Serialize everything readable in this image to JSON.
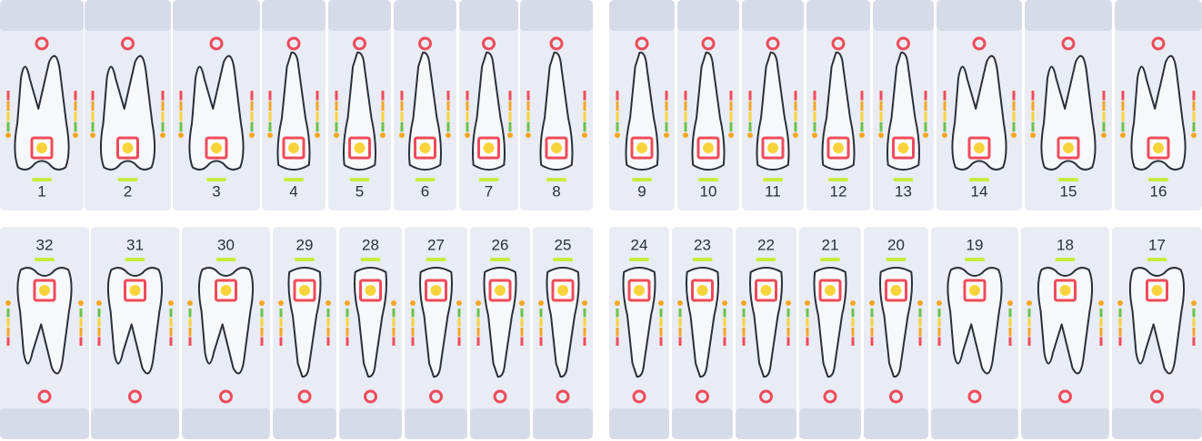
{
  "upper": {
    "teeth": [
      1,
      2,
      3,
      4,
      5,
      6,
      7,
      8,
      9,
      10,
      11,
      12,
      13,
      14,
      15,
      16
    ]
  },
  "lower": {
    "teeth": [
      32,
      31,
      30,
      29,
      28,
      27,
      26,
      25,
      24,
      23,
      22,
      21,
      20,
      19,
      18,
      17
    ]
  }
}
